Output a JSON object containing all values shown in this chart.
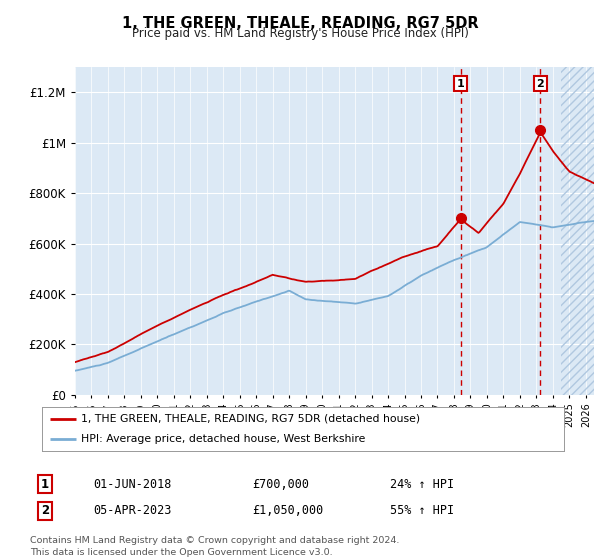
{
  "title": "1, THE GREEN, THEALE, READING, RG7 5DR",
  "subtitle": "Price paid vs. HM Land Registry's House Price Index (HPI)",
  "ylabel_ticks": [
    "£0",
    "£200K",
    "£400K",
    "£600K",
    "£800K",
    "£1M",
    "£1.2M"
  ],
  "ylim": [
    0,
    1300000
  ],
  "xlim_start": 1995,
  "xlim_end": 2026.5,
  "red_line_label": "1, THE GREEN, THEALE, READING, RG7 5DR (detached house)",
  "blue_line_label": "HPI: Average price, detached house, West Berkshire",
  "sale1_date": "01-JUN-2018",
  "sale1_price": "£700,000",
  "sale1_hpi": "24% ↑ HPI",
  "sale1_year": 2018.4,
  "sale1_value": 700000,
  "sale2_date": "05-APR-2023",
  "sale2_price": "£1,050,000",
  "sale2_hpi": "55% ↑ HPI",
  "sale2_year": 2023.25,
  "sale2_value": 1050000,
  "footer": "Contains HM Land Registry data © Crown copyright and database right 2024.\nThis data is licensed under the Open Government Licence v3.0.",
  "background_color": "#dce9f5",
  "red_color": "#cc0000",
  "blue_color": "#7aadd4",
  "future_start": 2024.5,
  "ytick_values": [
    0,
    200000,
    400000,
    600000,
    800000,
    1000000,
    1200000
  ]
}
